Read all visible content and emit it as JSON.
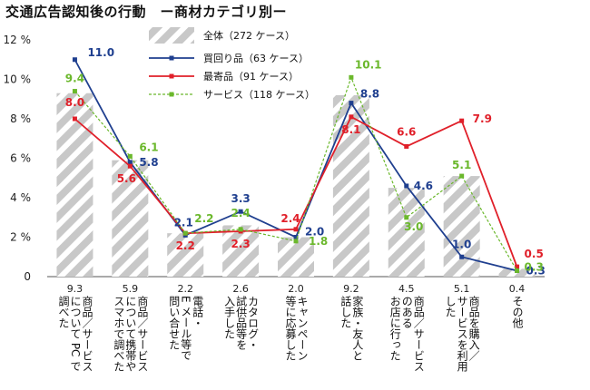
{
  "title": "交通広告認知後の行動　ー商材カテゴリ別ー",
  "colors": {
    "total_hatch": "#c8c8c8",
    "kaimawari": "#1f3f8f",
    "mogori": "#e0202a",
    "service": "#6bb82c",
    "axis": "#555555",
    "grid": "#ffffff"
  },
  "chart_data": {
    "type": "bar",
    "title": "交通広告認知後の行動　ー商材カテゴリ別ー",
    "ylim": [
      0,
      12
    ],
    "yticks": [
      "0",
      "2 %",
      "4 %",
      "6 %",
      "8 %",
      "10 %",
      "12 %"
    ],
    "ytick_values": [
      0,
      2,
      4,
      6,
      8,
      10,
      12
    ],
    "legend_position": "top-center",
    "categories": [
      [
        "商品／サービス",
        "について PC で",
        "調べた"
      ],
      [
        "商品／サービス",
        "について携帯や",
        "スマホで調べた"
      ],
      [
        "電話・",
        "E メール等で",
        "問い合せた"
      ],
      [
        "カタログ・",
        "試供品等を",
        "入手した"
      ],
      [
        "キャンペーン",
        "等に応募した"
      ],
      [
        "家族・友人と",
        "話した"
      ],
      [
        "商品／サービス",
        "のある",
        "お店に行った"
      ],
      [
        "商品を購入／",
        "サービスを利用",
        "した"
      ],
      [
        "その他"
      ]
    ],
    "series": [
      {
        "name": "全体（272 ケース）",
        "kind": "bar",
        "values": [
          9.3,
          5.9,
          2.2,
          2.6,
          2.0,
          9.2,
          4.5,
          5.1,
          0.4
        ],
        "labels": [
          "9.3",
          "5.9",
          "2.2",
          "2.6",
          "2.0",
          "9.2",
          "4.5",
          "5.1",
          "0.4"
        ]
      },
      {
        "name": "買回り品（63 ケース）",
        "kind": "line",
        "color": "#1f3f8f",
        "values": [
          11.0,
          5.8,
          2.1,
          3.3,
          2.0,
          8.8,
          4.6,
          1.0,
          0.3
        ],
        "labels": [
          "11.0",
          "5.8",
          "2.1",
          "3.3",
          "2.0",
          "8.8",
          "4.6",
          "1.0",
          "0.3"
        ]
      },
      {
        "name": "最寄品（91 ケース）",
        "kind": "line",
        "color": "#e0202a",
        "values": [
          8.0,
          5.6,
          2.2,
          2.3,
          2.4,
          8.1,
          6.6,
          7.9,
          0.5
        ],
        "labels": [
          "8.0",
          "5.6",
          "2.2",
          "2.3",
          "2.4",
          "8.1",
          "6.6",
          "7.9",
          "0.5"
        ]
      },
      {
        "name": "サービス（118 ケース）",
        "kind": "dashed",
        "color": "#6bb82c",
        "values": [
          9.4,
          6.1,
          2.2,
          2.4,
          1.8,
          10.1,
          3.0,
          5.1,
          0.3
        ],
        "labels": [
          "9.4",
          "6.1",
          "2.2",
          "2.4",
          "1.8",
          "10.1",
          "3.0",
          "5.1",
          "0.3"
        ]
      }
    ]
  }
}
